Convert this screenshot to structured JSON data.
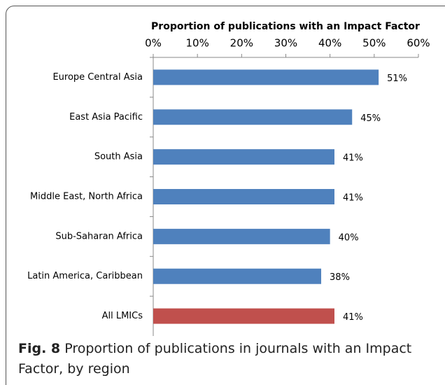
{
  "chart_data": {
    "type": "bar",
    "orientation": "horizontal",
    "title": "Proportion of publications with an Impact Factor",
    "categories": [
      "Europe Central Asia",
      "East Asia Pacific",
      "South Asia",
      "Middle East, North Africa",
      "Sub-Saharan Africa",
      "Latin America, Caribbean",
      "All LMICs"
    ],
    "values": [
      51,
      45,
      41,
      41,
      40,
      38,
      41
    ],
    "value_labels": [
      "51%",
      "45%",
      "41%",
      "41%",
      "40%",
      "38%",
      "41%"
    ],
    "colors": [
      "#4f81bd",
      "#4f81bd",
      "#4f81bd",
      "#4f81bd",
      "#4f81bd",
      "#4f81bd",
      "#c0504d"
    ],
    "xlim": [
      0,
      60
    ],
    "xticks": [
      {
        "value": 0,
        "label": "0%"
      },
      {
        "value": 10,
        "label": "10%"
      },
      {
        "value": 20,
        "label": "20%"
      },
      {
        "value": 30,
        "label": "30%"
      },
      {
        "value": 40,
        "label": "40%"
      },
      {
        "value": 50,
        "label": "50%"
      },
      {
        "value": 60,
        "label": "60%"
      }
    ],
    "caption_label": "Fig. 8",
    "caption": "Proportion of publications in journals with an Impact Factor, by region"
  }
}
